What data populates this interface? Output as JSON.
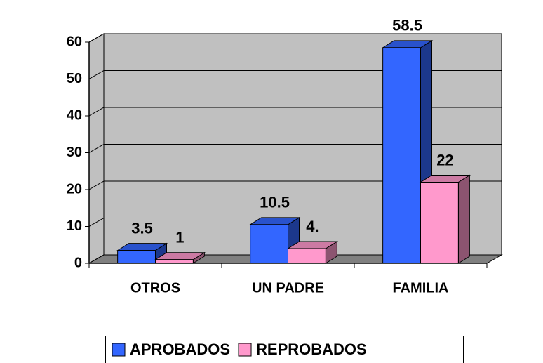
{
  "chart_data": {
    "type": "bar3d",
    "categories": [
      "OTROS",
      "UN PADRE",
      "FAMILIA"
    ],
    "series": [
      {
        "name": "APROBADOS",
        "color": "#3366ff",
        "values": [
          3.5,
          10.5,
          58.5
        ],
        "value_labels": [
          "3.5",
          "10.5",
          "58.5"
        ]
      },
      {
        "name": "REPROBADOS",
        "color": "#ff99cc",
        "values": [
          1,
          4,
          22
        ],
        "value_labels": [
          "1",
          "4.",
          "22"
        ]
      }
    ],
    "ylim": [
      0,
      60
    ],
    "yticks": [
      0,
      10,
      20,
      30,
      40,
      50,
      60
    ],
    "grid": true,
    "legend": "bottom",
    "wall_color": "#c0c0c0"
  }
}
